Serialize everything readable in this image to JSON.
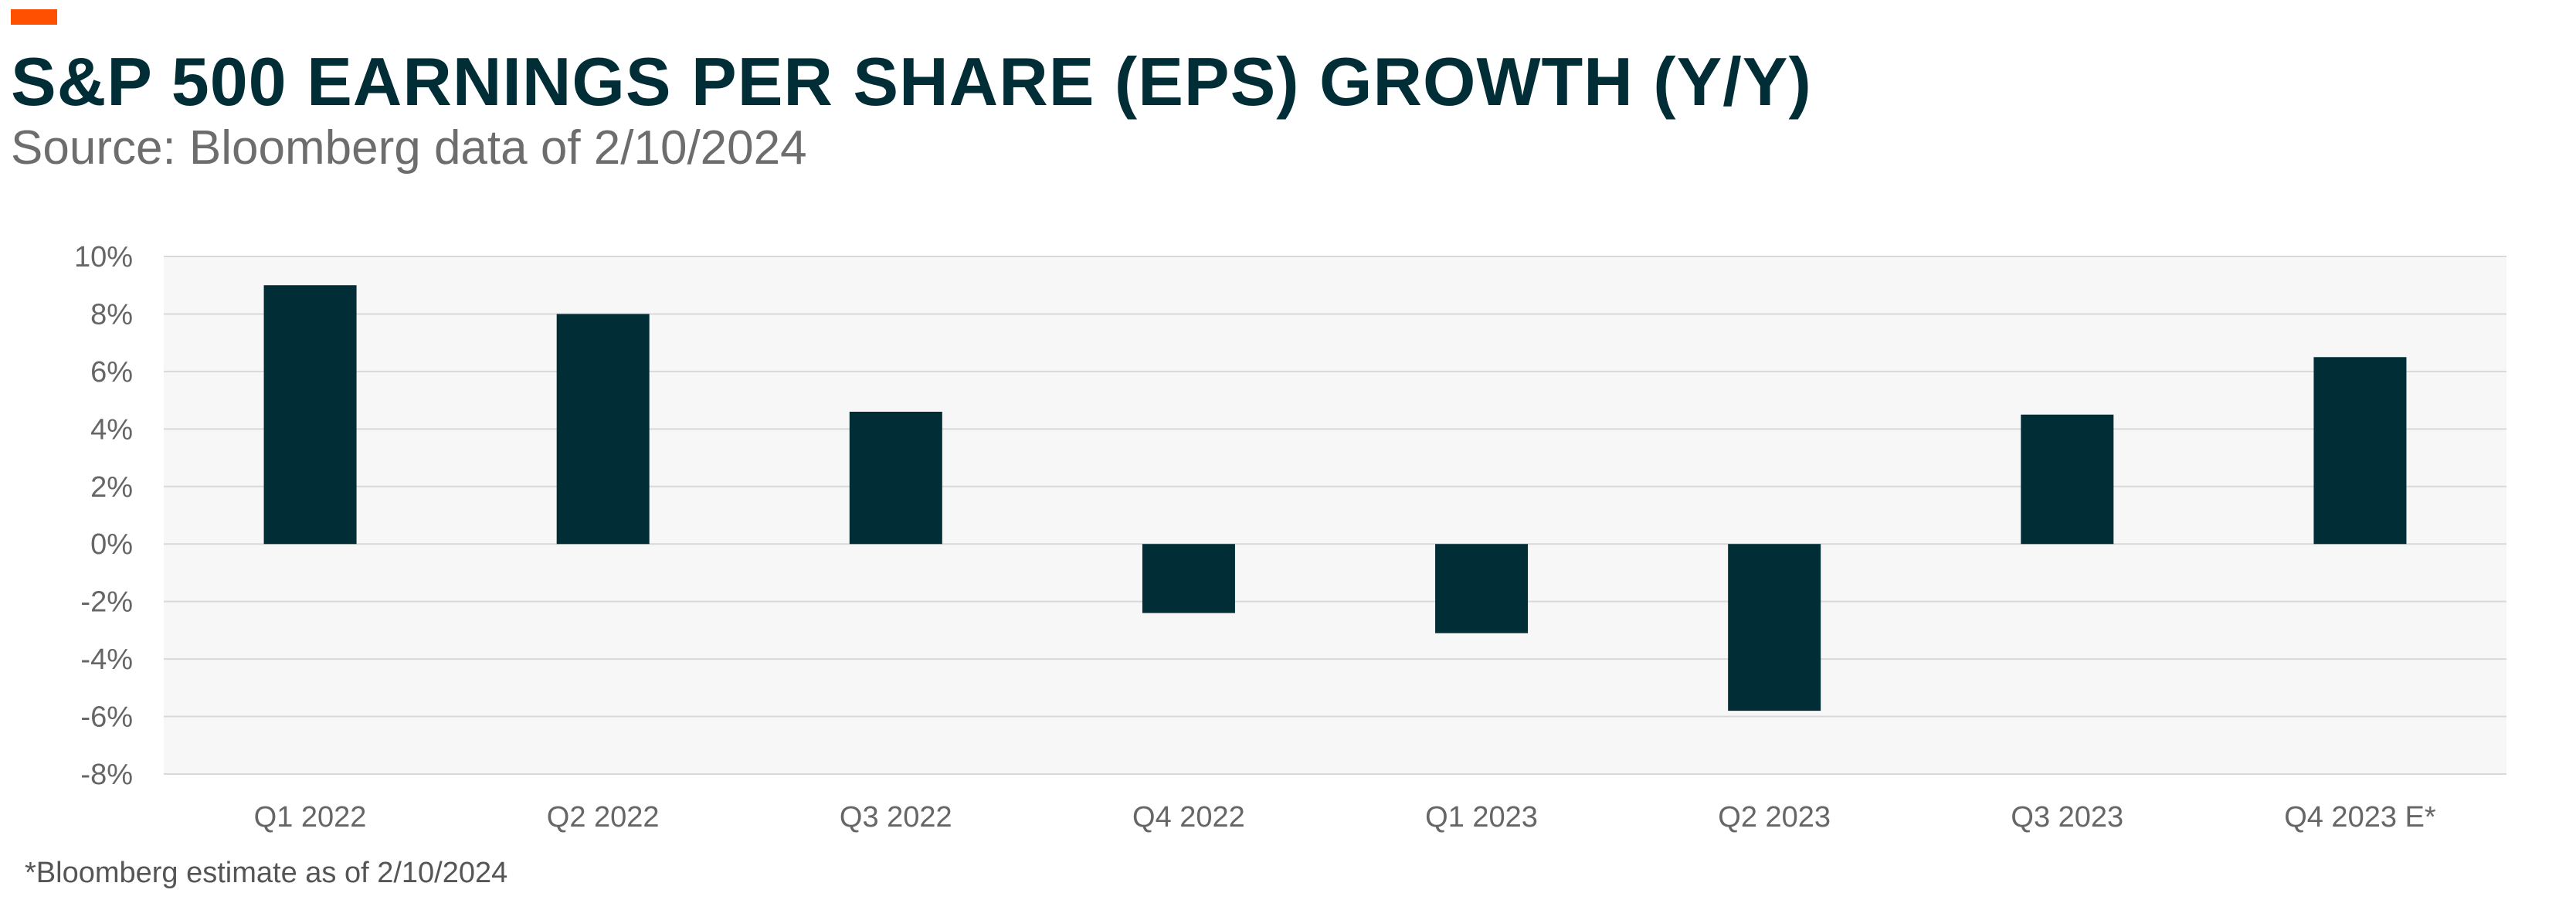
{
  "header": {
    "title": "S&P 500 EARNINGS PER SHARE (EPS) GROWTH (Y/Y)",
    "subtitle": "Source: Bloomberg data of 2/10/2024"
  },
  "footer": {
    "note": "*Bloomberg estimate as of 2/10/2024"
  },
  "colors": {
    "bar": "#012d37",
    "accent": "#ff4f00",
    "plot_background": "#f7f7f7",
    "gridline": "#d9d9d9"
  },
  "chart_data": {
    "type": "bar",
    "title": "S&P 500 EARNINGS PER SHARE (EPS) GROWTH (Y/Y)",
    "xlabel": "",
    "ylabel": "",
    "categories": [
      "Q1 2022",
      "Q2 2022",
      "Q3 2022",
      "Q4 2022",
      "Q1 2023",
      "Q2 2023",
      "Q3 2023",
      "Q4 2023 E*"
    ],
    "values": [
      9.0,
      8.0,
      4.6,
      -2.4,
      -3.1,
      -5.8,
      4.5,
      6.5
    ],
    "ylim": [
      -8,
      10
    ],
    "yticks": [
      10,
      8,
      6,
      4,
      2,
      0,
      -2,
      -4,
      -6,
      -8
    ],
    "ytick_labels": [
      "10%",
      "8%",
      "6%",
      "4%",
      "2%",
      "0%",
      "-2%",
      "-4%",
      "-6%",
      "-8%"
    ],
    "grid": true,
    "legend": "none"
  }
}
